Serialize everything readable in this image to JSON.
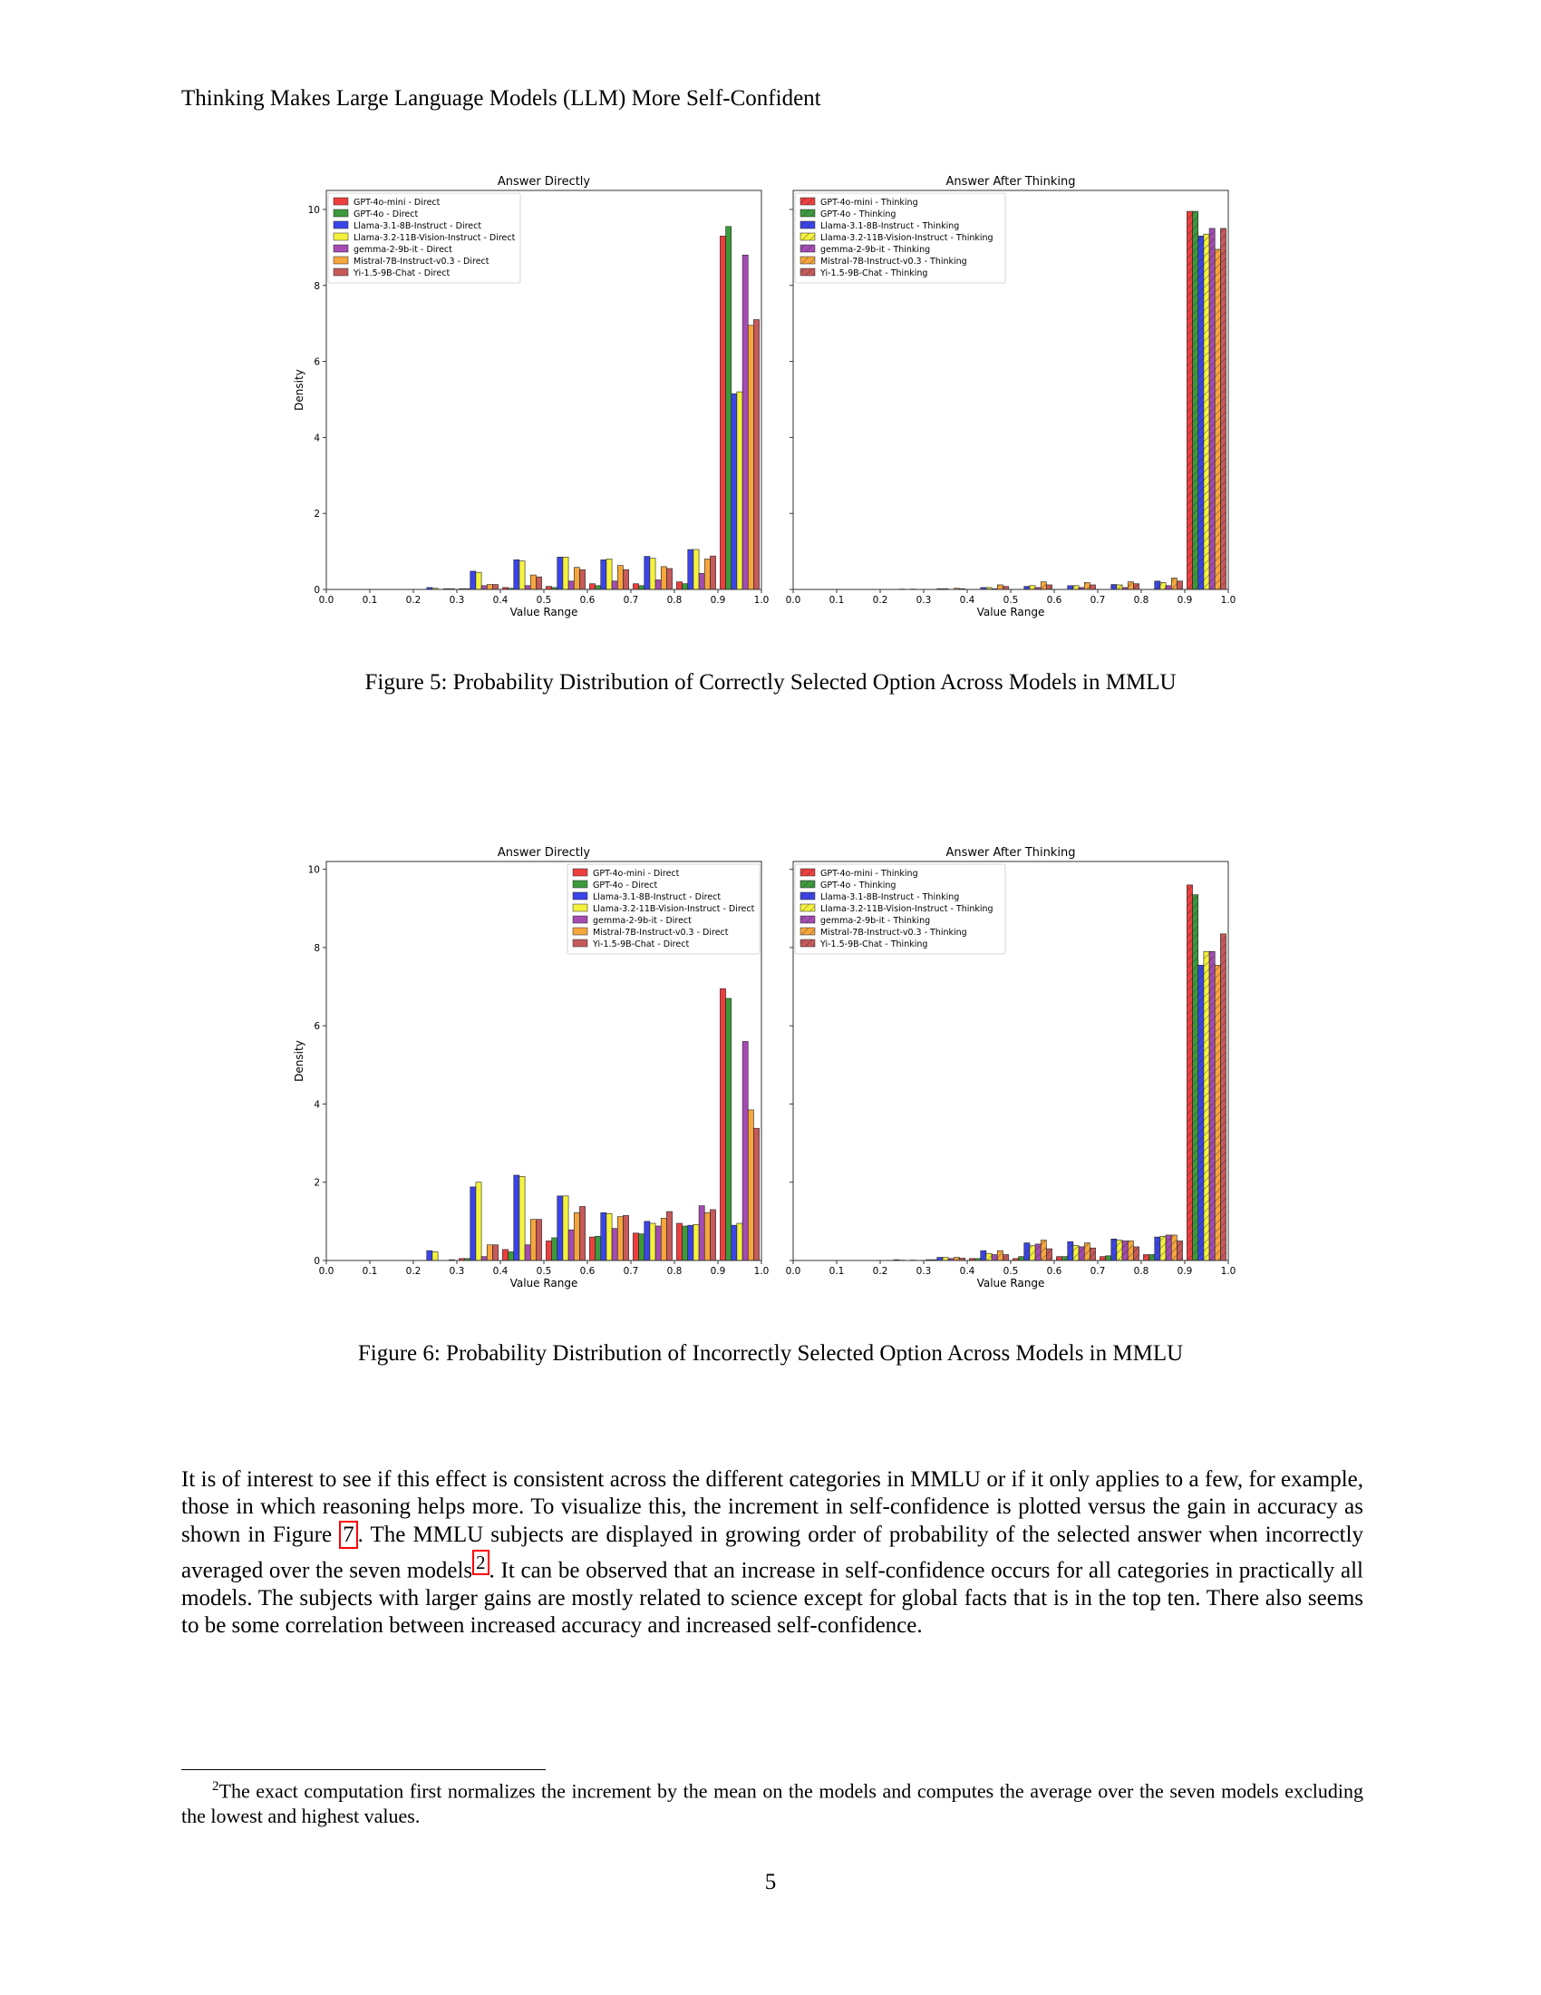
{
  "running_head": "Thinking Makes Large Language Models (LLM) More Self-Confident",
  "colors": {
    "GPT-4o-mini": "#ee3f3f",
    "GPT-4o": "#3c9a3c",
    "Llama-3.1-8B-Instruct": "#3b44e8",
    "Llama-3.2-11B-Vision-Instruct": "#f4f23c",
    "gemma-2-9b-it": "#a34bb3",
    "Mistral-7B-Instruct-v0.3": "#f5a63c",
    "Yi-1.5-9B-Chat": "#c65a5a"
  },
  "figures": [
    {
      "caption": "Figure 5: Probability Distribution of Correctly Selected Option Across Models in MMLU",
      "ylabel": "Density",
      "xlabel": "Value Range"
    },
    {
      "caption": "Figure 6: Probability Distribution of Incorrectly Selected Option Across Models in MMLU",
      "ylabel": "Density",
      "xlabel": "Value Range"
    }
  ],
  "chart_data": [
    {
      "type": "bar",
      "title": "Answer Directly",
      "xlabel": "Value Range",
      "ylabel": "Density",
      "xlim": [
        0.0,
        1.0
      ],
      "ylim": [
        0,
        10.5
      ],
      "xticks": [
        "0.0",
        "0.1",
        "0.2",
        "0.3",
        "0.4",
        "0.5",
        "0.6",
        "0.7",
        "0.8",
        "0.9",
        "1.0"
      ],
      "yticks": [
        "0",
        "2",
        "4",
        "6",
        "8",
        "10"
      ],
      "legend_position": "upper-left",
      "hatched": false,
      "categories": [
        "0.2-0.3",
        "0.3-0.4",
        "0.4-0.5",
        "0.5-0.6",
        "0.6-0.7",
        "0.7-0.8",
        "0.8-0.9",
        "0.9-1.0"
      ],
      "series": [
        {
          "name": "GPT-4o-mini - Direct",
          "values": [
            0.0,
            0.02,
            0.05,
            0.08,
            0.15,
            0.15,
            0.2,
            9.3
          ]
        },
        {
          "name": "GPT-4o - Direct",
          "values": [
            0.0,
            0.02,
            0.03,
            0.05,
            0.1,
            0.1,
            0.15,
            9.55
          ]
        },
        {
          "name": "Llama-3.1-8B-Instruct - Direct",
          "values": [
            0.05,
            0.48,
            0.78,
            0.85,
            0.78,
            0.87,
            1.05,
            5.15
          ]
        },
        {
          "name": "Llama-3.2-11B-Vision-Instruct - Direct",
          "values": [
            0.03,
            0.45,
            0.75,
            0.85,
            0.8,
            0.82,
            1.05,
            5.2
          ]
        },
        {
          "name": "gemma-2-9b-it - Direct",
          "values": [
            0.0,
            0.1,
            0.1,
            0.22,
            0.22,
            0.25,
            0.42,
            8.8
          ]
        },
        {
          "name": "Mistral-7B-Instruct-v0.3 - Direct",
          "values": [
            0.02,
            0.13,
            0.38,
            0.58,
            0.63,
            0.6,
            0.8,
            6.95
          ]
        },
        {
          "name": "Yi-1.5-9B-Chat - Direct",
          "values": [
            0.02,
            0.13,
            0.33,
            0.52,
            0.52,
            0.55,
            0.88,
            7.1
          ]
        }
      ]
    },
    {
      "type": "bar",
      "title": "Answer After Thinking",
      "xlabel": "Value Range",
      "ylabel": "",
      "xlim": [
        0.0,
        1.0
      ],
      "ylim": [
        0,
        10.5
      ],
      "xticks": [
        "0.0",
        "0.1",
        "0.2",
        "0.3",
        "0.4",
        "0.5",
        "0.6",
        "0.7",
        "0.8",
        "0.9",
        "1.0"
      ],
      "yticks": [],
      "legend_position": "upper-left",
      "hatched": true,
      "categories": [
        "0.2-0.3",
        "0.3-0.4",
        "0.4-0.5",
        "0.5-0.6",
        "0.6-0.7",
        "0.7-0.8",
        "0.8-0.9",
        "0.9-1.0"
      ],
      "series": [
        {
          "name": "GPT-4o-mini - Thinking",
          "values": [
            0.0,
            0.0,
            0.0,
            0.0,
            0.0,
            0.0,
            0.0,
            9.95
          ]
        },
        {
          "name": "GPT-4o - Thinking",
          "values": [
            0.0,
            0.0,
            0.0,
            0.0,
            0.0,
            0.0,
            0.0,
            9.95
          ]
        },
        {
          "name": "Llama-3.1-8B-Instruct - Thinking",
          "values": [
            0.0,
            0.02,
            0.05,
            0.08,
            0.1,
            0.13,
            0.22,
            9.3
          ]
        },
        {
          "name": "Llama-3.2-11B-Vision-Instruct - Thinking",
          "values": [
            0.01,
            0.02,
            0.05,
            0.1,
            0.1,
            0.12,
            0.18,
            9.35
          ]
        },
        {
          "name": "gemma-2-9b-it - Thinking",
          "values": [
            0.0,
            0.0,
            0.02,
            0.05,
            0.05,
            0.05,
            0.1,
            9.5
          ]
        },
        {
          "name": "Mistral-7B-Instruct-v0.3 - Thinking",
          "values": [
            0.01,
            0.03,
            0.12,
            0.2,
            0.18,
            0.2,
            0.3,
            8.95
          ]
        },
        {
          "name": "Yi-1.5-9B-Chat - Thinking",
          "values": [
            0.0,
            0.02,
            0.08,
            0.12,
            0.12,
            0.15,
            0.22,
            9.5
          ]
        }
      ]
    },
    {
      "type": "bar",
      "title": "Answer Directly",
      "xlabel": "Value Range",
      "ylabel": "Density",
      "xlim": [
        0.0,
        1.0
      ],
      "ylim": [
        0,
        10.2
      ],
      "xticks": [
        "0.0",
        "0.1",
        "0.2",
        "0.3",
        "0.4",
        "0.5",
        "0.6",
        "0.7",
        "0.8",
        "0.9",
        "1.0"
      ],
      "yticks": [
        "0",
        "2",
        "4",
        "6",
        "8",
        "10"
      ],
      "legend_position": "upper-right",
      "hatched": false,
      "categories": [
        "0.2-0.3",
        "0.3-0.4",
        "0.4-0.5",
        "0.5-0.6",
        "0.6-0.7",
        "0.7-0.8",
        "0.8-0.9",
        "0.9-1.0"
      ],
      "series": [
        {
          "name": "GPT-4o-mini - Direct",
          "values": [
            0.0,
            0.05,
            0.28,
            0.5,
            0.6,
            0.7,
            0.95,
            6.95
          ]
        },
        {
          "name": "GPT-4o - Direct",
          "values": [
            0.0,
            0.05,
            0.22,
            0.58,
            0.62,
            0.68,
            0.88,
            6.7
          ]
        },
        {
          "name": "Llama-3.1-8B-Instruct - Direct",
          "values": [
            0.25,
            1.88,
            2.18,
            1.65,
            1.22,
            1.0,
            0.9,
            0.9
          ]
        },
        {
          "name": "Llama-3.2-11B-Vision-Instruct - Direct",
          "values": [
            0.22,
            2.0,
            2.15,
            1.65,
            1.2,
            0.95,
            0.92,
            0.95
          ]
        },
        {
          "name": "gemma-2-9b-it - Direct",
          "values": [
            0.0,
            0.1,
            0.4,
            0.78,
            0.82,
            0.88,
            1.4,
            5.6
          ]
        },
        {
          "name": "Mistral-7B-Instruct-v0.3 - Direct",
          "values": [
            0.0,
            0.4,
            1.05,
            1.22,
            1.12,
            1.08,
            1.22,
            3.85
          ]
        },
        {
          "name": "Yi-1.5-9B-Chat - Direct",
          "values": [
            0.02,
            0.4,
            1.05,
            1.38,
            1.15,
            1.25,
            1.3,
            3.38
          ]
        }
      ]
    },
    {
      "type": "bar",
      "title": "Answer After Thinking",
      "xlabel": "Value Range",
      "ylabel": "",
      "xlim": [
        0.0,
        1.0
      ],
      "ylim": [
        0,
        10.2
      ],
      "xticks": [
        "0.0",
        "0.1",
        "0.2",
        "0.3",
        "0.4",
        "0.5",
        "0.6",
        "0.7",
        "0.8",
        "0.9",
        "1.0"
      ],
      "yticks": [],
      "legend_position": "upper-left",
      "hatched": true,
      "categories": [
        "0.2-0.3",
        "0.3-0.4",
        "0.4-0.5",
        "0.5-0.6",
        "0.6-0.7",
        "0.7-0.8",
        "0.8-0.9",
        "0.9-1.0"
      ],
      "series": [
        {
          "name": "GPT-4o-mini - Thinking",
          "values": [
            0.0,
            0.02,
            0.05,
            0.05,
            0.1,
            0.1,
            0.15,
            9.6
          ]
        },
        {
          "name": "GPT-4o - Thinking",
          "values": [
            0.0,
            0.02,
            0.05,
            0.1,
            0.1,
            0.12,
            0.15,
            9.35
          ]
        },
        {
          "name": "Llama-3.1-8B-Instruct - Thinking",
          "values": [
            0.02,
            0.08,
            0.25,
            0.45,
            0.48,
            0.55,
            0.6,
            7.55
          ]
        },
        {
          "name": "Llama-3.2-11B-Vision-Instruct - Thinking",
          "values": [
            0.01,
            0.08,
            0.18,
            0.38,
            0.38,
            0.52,
            0.62,
            7.9
          ]
        },
        {
          "name": "gemma-2-9b-it - Thinking",
          "values": [
            0.0,
            0.05,
            0.15,
            0.42,
            0.35,
            0.5,
            0.65,
            7.9
          ]
        },
        {
          "name": "Mistral-7B-Instruct-v0.3 - Thinking",
          "values": [
            0.01,
            0.08,
            0.25,
            0.52,
            0.45,
            0.5,
            0.65,
            7.55
          ]
        },
        {
          "name": "Yi-1.5-9B-Chat - Thinking",
          "values": [
            0.0,
            0.06,
            0.15,
            0.3,
            0.32,
            0.35,
            0.5,
            8.35
          ]
        }
      ]
    }
  ],
  "paragraph": {
    "part1": "It is of interest to see if this effect is consistent across the different categories in MMLU or if it only applies to a few, for example, those in which reasoning helps more. To visualize this, the increment in self-confidence is plotted versus the gain in accuracy as shown in Figure ",
    "figure_ref": "7",
    "part2": ". The MMLU subjects are displayed in growing order of probability of the selected answer when incorrectly averaged over the seven models",
    "footnote_ref": "2",
    "part3": ". It can be observed that an increase in self-confidence occurs for all categories in practically all models. The subjects with larger gains are mostly related to science except for global facts that is in the top ten. There also seems to be some correlation between increased accuracy and increased self-confidence."
  },
  "footnote": {
    "marker": "2",
    "text": "The exact computation first normalizes the increment by the mean on the models and computes the average over the seven models excluding the lowest and highest values."
  },
  "page_number": "5"
}
